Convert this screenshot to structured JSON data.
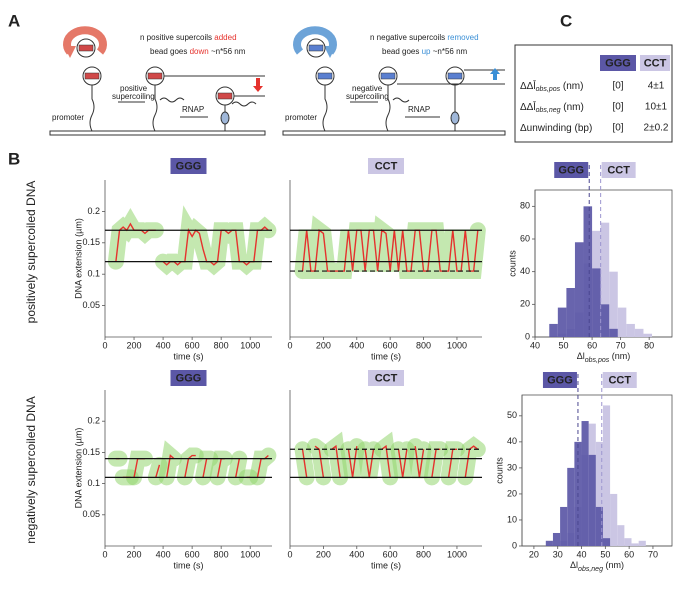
{
  "panel_labels": [
    "A",
    "B",
    "C"
  ],
  "row_labels": [
    "positively supercoiled DNA",
    "negatively supercoiled DNA"
  ],
  "diagram": {
    "left": {
      "line1": [
        "n positive supercoils ",
        "added"
      ],
      "line2": [
        "bead goes ",
        "down",
        " ~n*56 nm"
      ],
      "promoter": "promoter",
      "step": [
        "positive",
        "supercoiling"
      ],
      "enzyme": "RNAP"
    },
    "right": {
      "line1": [
        "n negative supercoils ",
        "removed"
      ],
      "line2": [
        "bead goes ",
        "up",
        " ~n*56 nm"
      ],
      "promoter": "promoter",
      "step": [
        "negative",
        "supercoiling"
      ],
      "enzyme": "RNAP"
    }
  },
  "table": {
    "header": [
      "GGG",
      "CCT"
    ],
    "header_colors": [
      "#5b57a6",
      "#cbc6e4"
    ],
    "rows": [
      [
        {
          "main": "ΔΔl̄",
          "sub": "obs,pos",
          "unit": " (nm)"
        },
        "[0]",
        "4±1"
      ],
      [
        {
          "main": "ΔΔl̄",
          "sub": "obs,neg",
          "unit": " (nm)"
        },
        "[0]",
        "10±1"
      ],
      [
        {
          "main": "Δunwinding (bp)"
        },
        "[0]",
        "2±0.2"
      ]
    ]
  },
  "chart_data": [
    {
      "type": "line",
      "title": "GGG",
      "title_color": "#5b57a6",
      "xlabel": "time (s)",
      "ylabel": "DNA extension (µm)",
      "color": "#e5322d",
      "band_color": "#93d56f",
      "x": [
        75,
        100,
        125,
        150,
        175,
        200,
        225,
        250,
        275,
        300,
        325,
        350,
        375,
        400,
        425,
        450,
        475,
        500,
        525,
        550,
        575,
        600,
        625,
        650,
        675,
        700,
        725,
        750,
        775,
        800,
        825,
        850,
        875,
        900,
        925,
        950,
        975,
        1000,
        1025,
        1050,
        1075,
        1100,
        1125
      ],
      "values": [
        0.12,
        0.17,
        0.175,
        0.17,
        0.18,
        0.17,
        0.17,
        0.17,
        0.165,
        0.17,
        0.17,
        0.17,
        null,
        0.12,
        0.115,
        0.12,
        0.12,
        0.115,
        0.12,
        0.12,
        0.17,
        0.16,
        0.17,
        0.165,
        0.14,
        0.12,
        0.12,
        0.115,
        0.12,
        0.17,
        0.17,
        0.165,
        0.17,
        0.17,
        0.12,
        0.12,
        0.115,
        0.12,
        0.12,
        0.17,
        0.17,
        0.175,
        0.17
      ],
      "hlines": [
        {
          "value": 0.17,
          "style": "solid"
        },
        {
          "value": 0.12,
          "style": "solid"
        }
      ],
      "xlim": [
        0,
        1150
      ],
      "ylim": [
        0,
        0.25
      ],
      "xticks": [
        0,
        200,
        400,
        600,
        800,
        1000
      ],
      "yticks": [
        0.05,
        0.1,
        0.15,
        0.2
      ]
    },
    {
      "type": "line",
      "title": "CCT",
      "title_color": "#cbc6e4",
      "xlabel": "time (s)",
      "color": "#e5322d",
      "band_color": "#93d56f",
      "x": [
        75,
        100,
        125,
        150,
        175,
        200,
        225,
        250,
        275,
        300,
        325,
        350,
        375,
        400,
        425,
        450,
        475,
        500,
        525,
        550,
        575,
        600,
        625,
        650,
        675,
        700,
        725,
        750,
        775,
        800,
        825,
        850,
        875,
        900,
        925,
        950,
        975,
        1000,
        1025,
        1050,
        1075,
        1100,
        1125
      ],
      "values": [
        0.105,
        0.17,
        0.105,
        0.105,
        0.17,
        0.165,
        0.105,
        0.105,
        0.105,
        0.105,
        0.105,
        0.17,
        0.105,
        0.17,
        0.17,
        0.105,
        0.17,
        0.17,
        0.105,
        0.17,
        0.165,
        0.105,
        0.17,
        0.105,
        0.17,
        0.105,
        0.105,
        0.17,
        0.17,
        0.105,
        0.105,
        0.17,
        0.17,
        0.105,
        0.105,
        0.105,
        0.17,
        0.105,
        0.105,
        0.17,
        0.105,
        0.105,
        0.17
      ],
      "hlines": [
        {
          "value": 0.17,
          "style": "solid"
        },
        {
          "value": 0.12,
          "style": "solid"
        },
        {
          "value": 0.105,
          "style": "dashed"
        }
      ],
      "xlim": [
        0,
        1150
      ],
      "ylim": [
        0,
        0.25
      ],
      "xticks": [
        0,
        200,
        400,
        600,
        800,
        1000
      ]
    },
    {
      "type": "line",
      "title": "GGG",
      "title_color": "#5b57a6",
      "xlabel": "time (s)",
      "ylabel": "DNA extension (µm)",
      "color": "#e5322d",
      "band_color": "#93d56f",
      "x": [
        75,
        100,
        125,
        150,
        175,
        200,
        225,
        250,
        275,
        300,
        325,
        350,
        375,
        400,
        425,
        450,
        475,
        500,
        525,
        550,
        575,
        600,
        625,
        650,
        675,
        700,
        725,
        750,
        775,
        800,
        825,
        850,
        875,
        900,
        925,
        950,
        975,
        1000,
        1025,
        1050,
        1075,
        1100,
        1125
      ],
      "values": [
        0.14,
        0.14,
        null,
        0.11,
        null,
        0.11,
        0.14,
        0.14,
        0.14,
        null,
        null,
        0.11,
        0.13,
        null,
        0.11,
        0.145,
        0.14,
        null,
        null,
        0.11,
        0.14,
        0.145,
        0.145,
        null,
        0.11,
        0.14,
        0.14,
        null,
        0.11,
        0.14,
        0.14,
        null,
        null,
        0.11,
        0.14,
        null,
        0.11,
        0.11,
        null,
        0.11,
        0.14,
        0.14,
        0.145
      ],
      "hlines": [
        {
          "value": 0.14,
          "style": "solid"
        },
        {
          "value": 0.11,
          "style": "solid"
        }
      ],
      "xlim": [
        0,
        1150
      ],
      "ylim": [
        0,
        0.25
      ],
      "xticks": [
        0,
        200,
        400,
        600,
        800,
        1000
      ],
      "yticks": [
        0.05,
        0.1,
        0.15,
        0.2
      ]
    },
    {
      "type": "line",
      "title": "CCT",
      "title_color": "#cbc6e4",
      "xlabel": "time (s)",
      "color": "#e5322d",
      "band_color": "#93d56f",
      "x": [
        75,
        100,
        125,
        150,
        175,
        200,
        225,
        250,
        275,
        300,
        325,
        350,
        375,
        400,
        425,
        450,
        475,
        500,
        525,
        550,
        575,
        600,
        625,
        650,
        675,
        700,
        725,
        750,
        775,
        800,
        825,
        850,
        875,
        900,
        925,
        950,
        975,
        1000,
        1025,
        1050,
        1075,
        1100,
        1125
      ],
      "values": [
        0.155,
        0.11,
        null,
        0.16,
        0.155,
        0.11,
        null,
        0.155,
        0.16,
        0.11,
        null,
        0.155,
        0.11,
        0.16,
        null,
        0.155,
        0.11,
        0.155,
        null,
        0.155,
        0.16,
        0.11,
        null,
        0.155,
        0.11,
        0.155,
        null,
        0.16,
        0.11,
        0.155,
        null,
        0.11,
        0.155,
        0.155,
        null,
        0.11,
        0.155,
        0.155,
        null,
        0.11,
        0.155,
        0.16,
        0.155
      ],
      "hlines": [
        {
          "value": 0.14,
          "style": "solid"
        },
        {
          "value": 0.11,
          "style": "solid"
        },
        {
          "value": 0.155,
          "style": "dashed"
        }
      ],
      "xlim": [
        0,
        1150
      ],
      "ylim": [
        0,
        0.25
      ],
      "xticks": [
        0,
        200,
        400,
        600,
        800,
        1000
      ]
    },
    {
      "type": "histogram",
      "xlabel": {
        "main": "Δl",
        "sub": "obs,pos",
        "unit": " (nm)"
      },
      "ylabel": "counts",
      "bins": [
        45,
        48,
        51,
        54,
        57,
        60,
        63,
        66,
        69,
        72,
        75,
        78,
        81
      ],
      "series": [
        {
          "name": "CCT",
          "color": "#cbc6e4",
          "mean": 63,
          "values": [
            0,
            2,
            5,
            15,
            45,
            65,
            70,
            40,
            18,
            8,
            5,
            2
          ]
        },
        {
          "name": "GGG",
          "color": "#5b57a6",
          "mean": 59,
          "values": [
            8,
            18,
            30,
            58,
            80,
            42,
            20,
            5,
            0,
            0,
            0,
            0
          ]
        }
      ],
      "xlim": [
        40,
        88
      ],
      "ylim": [
        0,
        90
      ],
      "xticks": [
        40,
        50,
        60,
        70,
        80
      ],
      "yticks": [
        0,
        20,
        40,
        60,
        80
      ]
    },
    {
      "type": "histogram",
      "xlabel": {
        "main": "Δl",
        "sub": "obs,neg",
        "unit": " (nm)"
      },
      "ylabel": "counts",
      "bins": [
        25,
        28,
        31,
        34,
        37,
        40,
        43,
        46,
        49,
        52,
        55,
        58,
        61,
        64,
        67
      ],
      "series": [
        {
          "name": "CCT",
          "color": "#cbc6e4",
          "mean": 48.5,
          "values": [
            0,
            0,
            2,
            5,
            15,
            35,
            47,
            40,
            54,
            20,
            8,
            3,
            1,
            2
          ]
        },
        {
          "name": "GGG",
          "color": "#5b57a6",
          "mean": 38.5,
          "values": [
            2,
            5,
            15,
            30,
            40,
            48,
            35,
            15,
            3,
            0,
            0,
            0,
            0,
            0
          ]
        }
      ],
      "xlim": [
        15,
        78
      ],
      "ylim": [
        0,
        58
      ],
      "xticks": [
        20,
        30,
        40,
        50,
        60,
        70
      ],
      "yticks": [
        0,
        10,
        20,
        30,
        40,
        50
      ]
    }
  ]
}
